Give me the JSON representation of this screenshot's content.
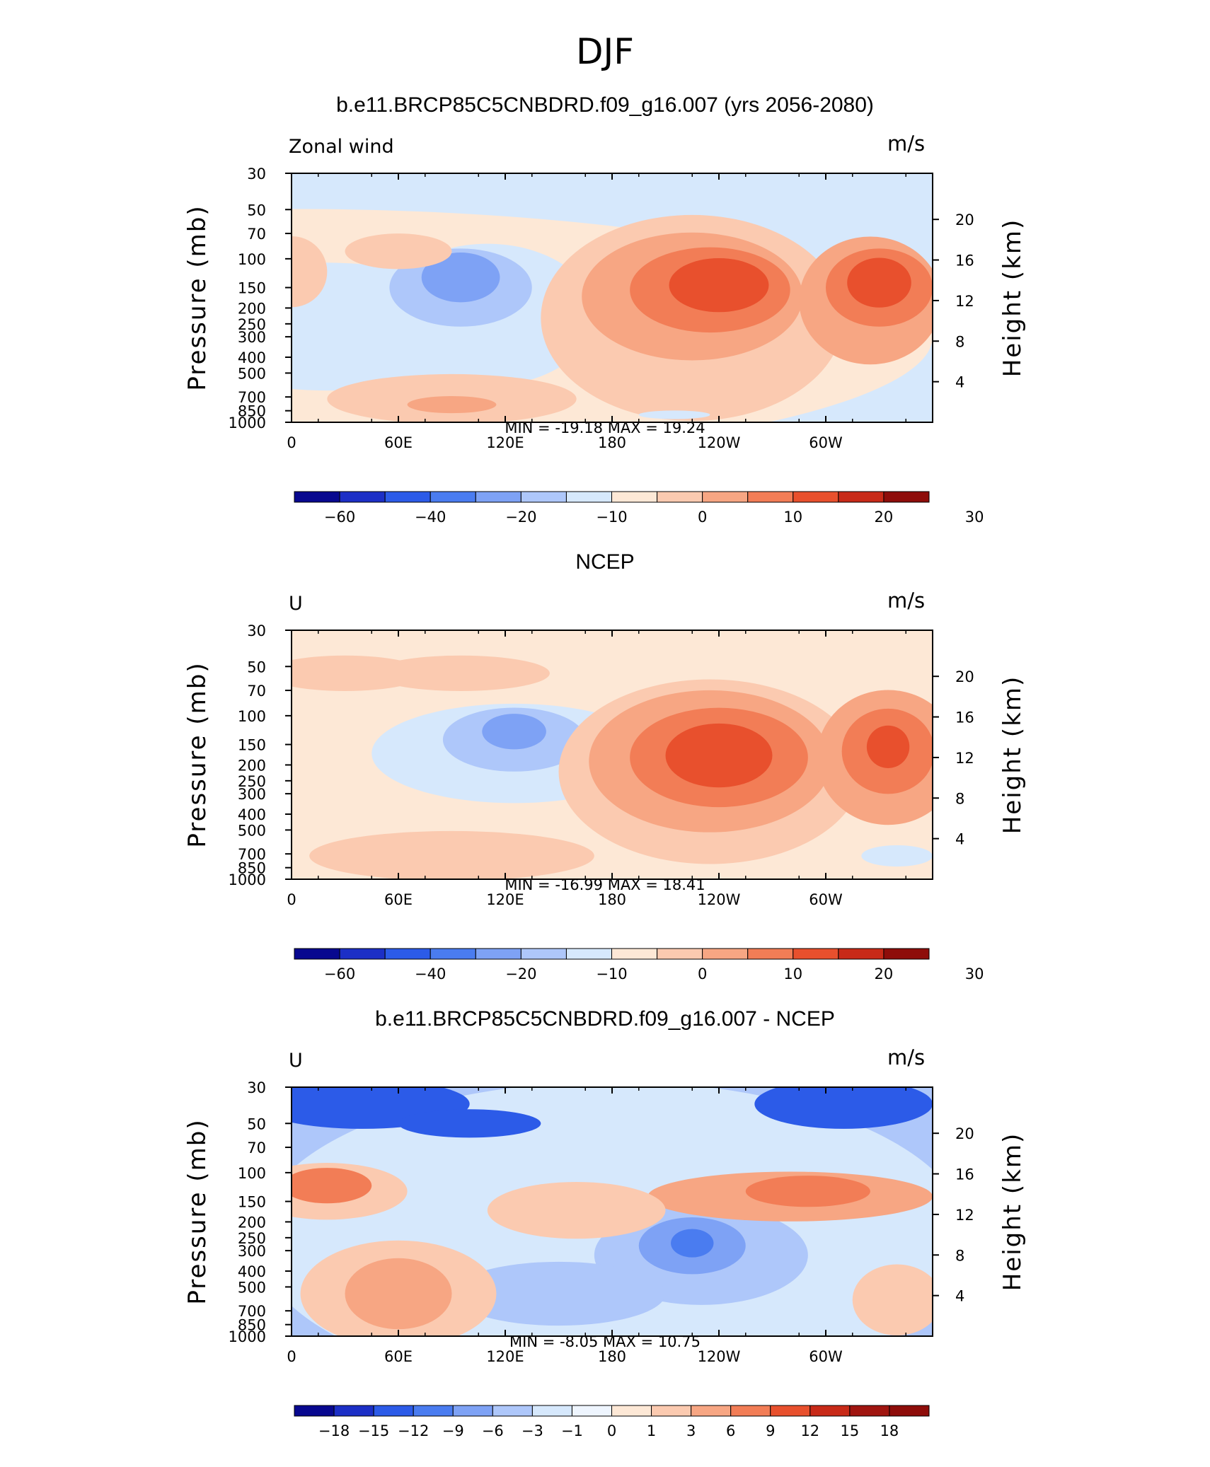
{
  "figure": {
    "title": "DJF"
  },
  "panels": [
    {
      "title": "b.e11.BRCP85C5CNBDRD.f09_g16.007 (yrs 2056-2080)",
      "left_label": "Zonal wind",
      "units": "m/s",
      "y_label_left": "Pressure (mb)",
      "y_label_right": "Height (km)",
      "stats": "MIN = -19.18   MAX =  19.24",
      "colorbar_labels": [
        "-60",
        "-40",
        "-20",
        "-10",
        "0",
        "10",
        "20",
        "30"
      ]
    },
    {
      "title": "NCEP",
      "left_label": "U",
      "units": "m/s",
      "y_label_left": "Pressure (mb)",
      "y_label_right": "Height (km)",
      "stats": "MIN = -16.99   MAX =  18.41",
      "colorbar_labels": [
        "-60",
        "-40",
        "-20",
        "-10",
        "0",
        "10",
        "20",
        "30"
      ]
    },
    {
      "title": "b.e11.BRCP85C5CNBDRD.f09_g16.007 - NCEP",
      "left_label": "U",
      "units": "m/s",
      "y_label_left": "Pressure (mb)",
      "y_label_right": "Height (km)",
      "stats": "MIN =   -8.05   MAX =  10.75",
      "colorbar_labels": [
        "-18",
        "-15",
        "-12",
        "-9",
        "-6",
        "-3",
        "-1",
        "0",
        "1",
        "3",
        "6",
        "9",
        "12",
        "15",
        "18"
      ]
    }
  ],
  "colors": {
    "field_cmap": [
      "#08088f",
      "#1c2fc6",
      "#2c5be8",
      "#4a7cf0",
      "#7ea2f5",
      "#aec7fa",
      "#d6e8fc",
      "#fde8d6",
      "#fbcab0",
      "#f7a683",
      "#f27d56",
      "#e8502d",
      "#c82a18",
      "#8e0d0a"
    ],
    "diff_cmap": [
      "#08088f",
      "#1c2fc6",
      "#2c5be8",
      "#4a7cf0",
      "#7ea2f5",
      "#aec7fa",
      "#d6e8fc",
      "#eef5fe",
      "#fde8d6",
      "#fbcab0",
      "#f7a683",
      "#f27d56",
      "#e8502d",
      "#c82a18",
      "#a01510",
      "#8e0d0a"
    ]
  },
  "chart_data": [
    {
      "type": "contour",
      "title": "b.e11.BRCP85C5CNBDRD.f09_g16.007 (yrs 2056-2080)",
      "variable": "Zonal wind",
      "units": "m/s",
      "x_ticks": [
        "0",
        "60E",
        "120E",
        "180",
        "120W",
        "60W"
      ],
      "y_ticks": [
        30,
        50,
        70,
        100,
        150,
        200,
        250,
        300,
        400,
        500,
        700,
        850,
        1000
      ],
      "y_ticks_right": [
        4,
        8,
        12,
        16,
        20
      ],
      "ylabel": "Pressure (mb)",
      "ylabel_right": "Height (km)",
      "min": -19.18,
      "max": 19.24,
      "colorbar_levels": [
        "-60",
        "-40",
        "-20",
        "-10",
        "0",
        "10",
        "20",
        "30"
      ]
    },
    {
      "type": "contour",
      "title": "NCEP",
      "variable": "U",
      "units": "m/s",
      "x_ticks": [
        "0",
        "60E",
        "120E",
        "180",
        "120W",
        "60W"
      ],
      "y_ticks": [
        30,
        50,
        70,
        100,
        150,
        200,
        250,
        300,
        400,
        500,
        700,
        850,
        1000
      ],
      "y_ticks_right": [
        4,
        8,
        12,
        16,
        20
      ],
      "ylabel": "Pressure (mb)",
      "ylabel_right": "Height (km)",
      "min": -16.99,
      "max": 18.41,
      "colorbar_levels": [
        "-60",
        "-40",
        "-20",
        "-10",
        "0",
        "10",
        "20",
        "30"
      ]
    },
    {
      "type": "contour",
      "title": "b.e11.BRCP85C5CNBDRD.f09_g16.007 - NCEP",
      "variable": "U",
      "units": "m/s",
      "x_ticks": [
        "0",
        "60E",
        "120E",
        "180",
        "120W",
        "60W"
      ],
      "y_ticks": [
        30,
        50,
        70,
        100,
        150,
        200,
        250,
        300,
        400,
        500,
        700,
        850,
        1000
      ],
      "y_ticks_right": [
        4,
        8,
        12,
        16,
        20
      ],
      "ylabel": "Pressure (mb)",
      "ylabel_right": "Height (km)",
      "min": -8.05,
      "max": 10.75,
      "colorbar_levels": [
        "-18",
        "-15",
        "-12",
        "-9",
        "-6",
        "-3",
        "-1",
        "0",
        "1",
        "3",
        "6",
        "9",
        "12",
        "15",
        "18"
      ]
    }
  ]
}
